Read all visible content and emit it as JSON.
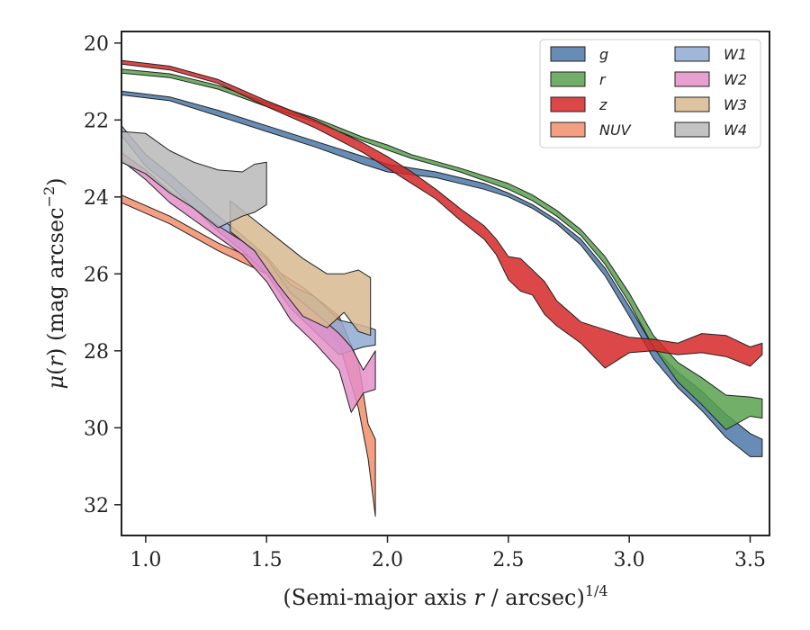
{
  "chart_data": {
    "type": "area",
    "xlim": [
      0.9,
      3.58
    ],
    "ylim": [
      32.8,
      19.7
    ],
    "y_inverted": true,
    "grid": false,
    "legend_placement": "top-right",
    "xticks": [
      1.0,
      1.5,
      2.0,
      2.5,
      3.0,
      3.5
    ],
    "xtick_labels": [
      "1.0",
      "1.5",
      "2.0",
      "2.5",
      "3.0",
      "3.5"
    ],
    "yticks": [
      20,
      22,
      24,
      26,
      28,
      30,
      32
    ],
    "ytick_labels": [
      "20",
      "22",
      "24",
      "26",
      "28",
      "30",
      "32"
    ],
    "xlabel": {
      "pre": "(Semi-major axis ",
      "var": "r",
      "mid": " / arcsec)",
      "sup": "1/4"
    },
    "ylabel": {
      "mu": "μ",
      "open": "(",
      "var": "r",
      "close": ") (mag arcsec",
      "sup": "−2",
      "end": ")"
    },
    "series": [
      {
        "name": "g",
        "color": "#4c78a8",
        "x": [
          0.9,
          1.1,
          1.3,
          1.5,
          1.7,
          1.9,
          2.0,
          2.2,
          2.4,
          2.5,
          2.6,
          2.7,
          2.8,
          2.9,
          3.0,
          3.1,
          3.2,
          3.3,
          3.4,
          3.5,
          3.55
        ],
        "lower": [
          21.25,
          21.4,
          21.75,
          22.15,
          22.55,
          22.95,
          23.15,
          23.35,
          23.65,
          23.9,
          24.2,
          24.6,
          25.1,
          25.85,
          26.85,
          27.9,
          28.55,
          29.05,
          29.65,
          30.15,
          30.3
        ],
        "upper": [
          21.35,
          21.5,
          21.9,
          22.3,
          22.7,
          23.15,
          23.35,
          23.5,
          23.8,
          24.0,
          24.3,
          24.7,
          25.25,
          26.05,
          27.1,
          28.2,
          28.95,
          29.55,
          30.25,
          30.75,
          30.75
        ]
      },
      {
        "name": "r",
        "color": "#59a14f",
        "x": [
          0.9,
          1.1,
          1.3,
          1.5,
          1.7,
          1.9,
          2.0,
          2.1,
          2.3,
          2.5,
          2.6,
          2.7,
          2.8,
          2.9,
          3.0,
          3.1,
          3.2,
          3.3,
          3.4,
          3.5,
          3.55
        ],
        "lower": [
          20.68,
          20.8,
          21.1,
          21.55,
          21.95,
          22.45,
          22.65,
          22.9,
          23.25,
          23.65,
          23.95,
          24.35,
          24.85,
          25.55,
          26.5,
          27.6,
          28.3,
          28.7,
          29.15,
          29.2,
          29.25
        ],
        "upper": [
          20.78,
          20.9,
          21.2,
          21.65,
          22.05,
          22.55,
          22.78,
          23.0,
          23.35,
          23.8,
          24.1,
          24.5,
          25.0,
          25.75,
          26.75,
          27.9,
          28.8,
          29.4,
          30.05,
          29.7,
          29.75
        ]
      },
      {
        "name": "z",
        "color": "#d62728",
        "x": [
          0.9,
          1.1,
          1.3,
          1.5,
          1.7,
          1.9,
          2.0,
          2.1,
          2.2,
          2.3,
          2.4,
          2.45,
          2.5,
          2.55,
          2.6,
          2.65,
          2.7,
          2.8,
          2.9,
          3.0,
          3.1,
          3.2,
          3.3,
          3.4,
          3.5,
          3.55
        ],
        "lower": [
          20.45,
          20.6,
          20.95,
          21.5,
          22.0,
          22.6,
          22.95,
          23.35,
          23.8,
          24.3,
          24.75,
          25.1,
          25.55,
          25.6,
          25.9,
          26.2,
          26.7,
          27.25,
          27.45,
          27.65,
          27.7,
          27.8,
          27.55,
          27.6,
          27.9,
          27.8
        ],
        "upper": [
          20.55,
          20.7,
          21.05,
          21.65,
          22.2,
          22.85,
          23.25,
          23.65,
          24.05,
          24.6,
          25.1,
          25.5,
          26.15,
          26.45,
          26.55,
          27.05,
          27.35,
          27.8,
          28.45,
          28.05,
          28.0,
          28.1,
          28.05,
          28.15,
          28.4,
          28.1
        ]
      },
      {
        "name": "NUV",
        "color": "#f28e6b",
        "x": [
          0.9,
          1.1,
          1.3,
          1.5,
          1.65,
          1.8,
          1.88,
          1.92,
          1.95
        ],
        "lower": [
          23.95,
          24.5,
          25.2,
          25.75,
          26.35,
          27.1,
          28.3,
          29.9,
          30.3
        ],
        "upper": [
          24.15,
          24.7,
          25.4,
          26.0,
          26.7,
          27.8,
          29.5,
          30.8,
          32.3
        ]
      },
      {
        "name": "W1",
        "color": "#8faad4",
        "x": [
          0.9,
          1.0,
          1.1,
          1.2,
          1.3,
          1.4,
          1.5,
          1.6,
          1.7,
          1.8,
          1.9,
          1.95
        ],
        "lower": [
          22.15,
          22.9,
          23.4,
          23.95,
          24.5,
          25.0,
          25.55,
          26.3,
          26.6,
          27.2,
          27.35,
          27.45
        ],
        "upper": [
          22.4,
          23.2,
          23.7,
          24.3,
          24.9,
          25.4,
          26.0,
          26.9,
          27.5,
          28.1,
          27.9,
          27.85
        ]
      },
      {
        "name": "W2",
        "color": "#e48fc9",
        "x": [
          0.9,
          1.0,
          1.1,
          1.2,
          1.3,
          1.4,
          1.5,
          1.6,
          1.7,
          1.8,
          1.85,
          1.9,
          1.95
        ],
        "lower": [
          22.85,
          23.3,
          23.85,
          24.3,
          24.75,
          25.15,
          25.6,
          26.5,
          27.0,
          27.55,
          27.9,
          28.5,
          28.0
        ],
        "upper": [
          23.05,
          23.55,
          24.15,
          24.6,
          25.05,
          25.5,
          26.2,
          27.2,
          27.8,
          28.5,
          29.6,
          29.1,
          29.0
        ]
      },
      {
        "name": "W3",
        "color": "#d8b991",
        "x": [
          1.35,
          1.45,
          1.55,
          1.65,
          1.75,
          1.82,
          1.88,
          1.93
        ],
        "lower": [
          24.1,
          24.6,
          25.1,
          25.6,
          26.0,
          26.0,
          25.9,
          26.1
        ],
        "upper": [
          24.9,
          25.4,
          26.3,
          27.1,
          27.4,
          27.0,
          27.5,
          27.6
        ]
      },
      {
        "name": "W4",
        "color": "#b8b8b8",
        "x": [
          0.9,
          1.0,
          1.1,
          1.2,
          1.3,
          1.4,
          1.45,
          1.5
        ],
        "lower": [
          22.3,
          22.35,
          22.8,
          23.1,
          23.3,
          23.35,
          23.15,
          23.1
        ],
        "upper": [
          23.1,
          23.4,
          23.9,
          24.3,
          24.8,
          24.5,
          24.4,
          24.2
        ]
      }
    ]
  }
}
